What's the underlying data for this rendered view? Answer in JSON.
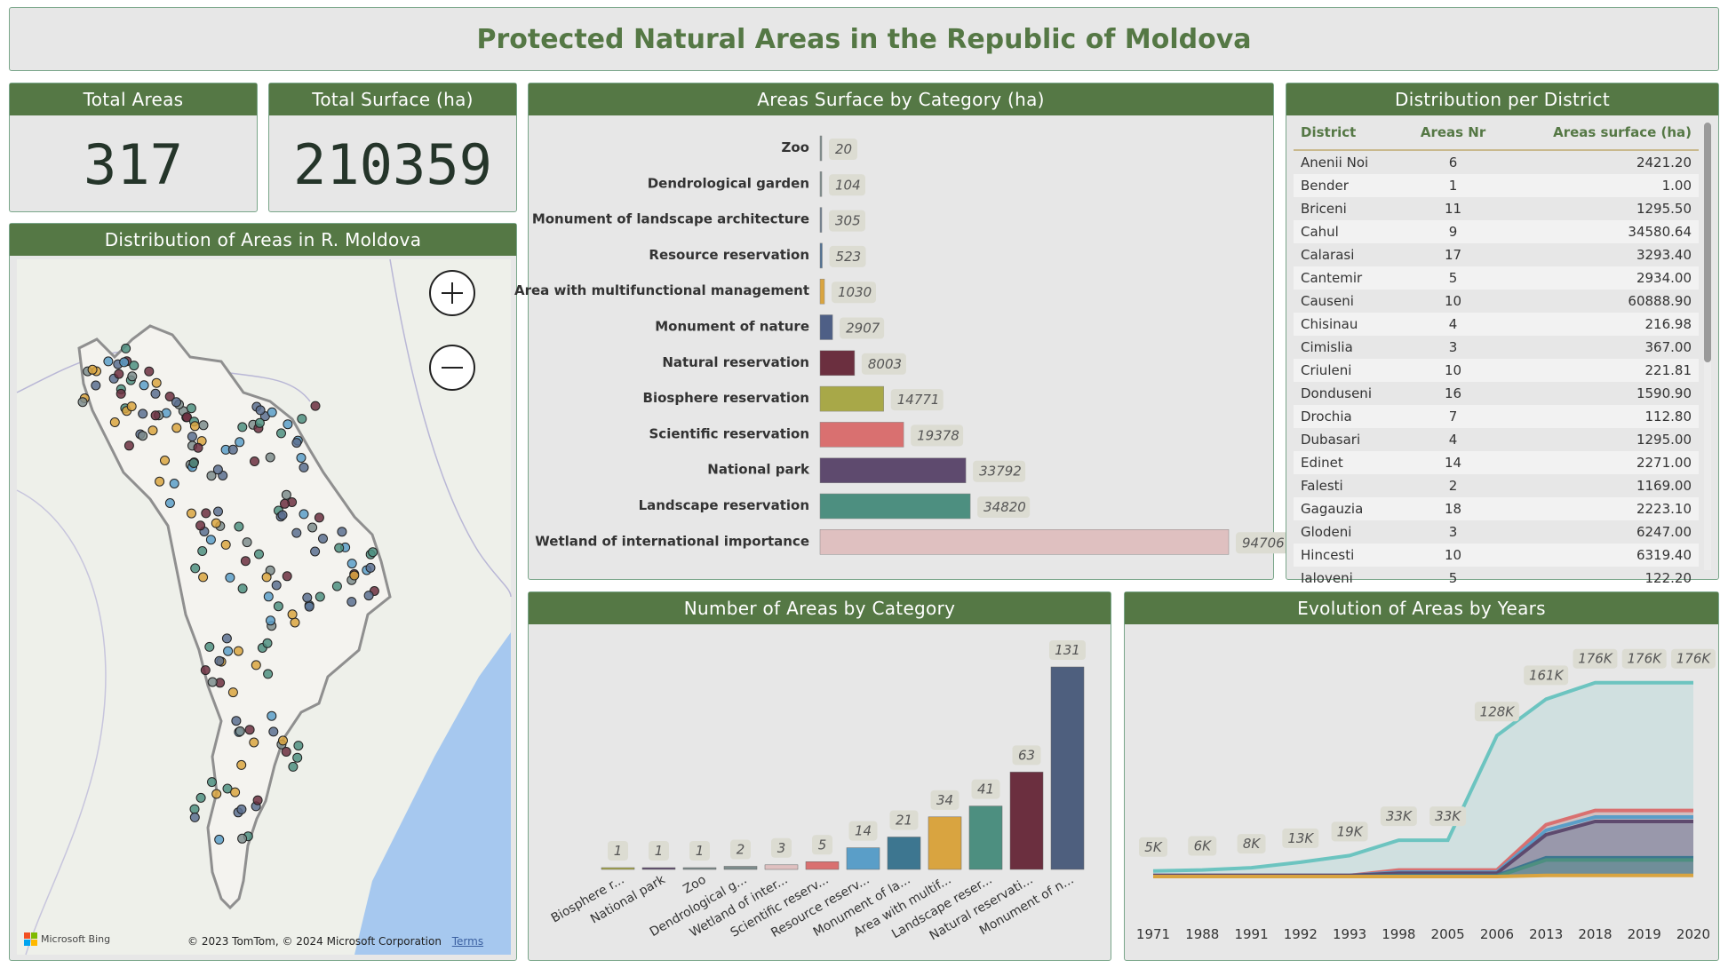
{
  "title": "Protected Natural Areas in the Republic of Moldova",
  "kpis": {
    "total_areas_label": "Total Areas",
    "total_areas_value": "317",
    "total_surface_label": "Total Surface (ha)",
    "total_surface_value": "210359"
  },
  "map": {
    "title": "Distribution of Areas in R. Moldova",
    "zoom_in": "+",
    "zoom_out": "−",
    "bing_label": "Microsoft Bing",
    "copyright": "© 2023 TomTom, © 2024 Microsoft Corporation",
    "terms": "Terms"
  },
  "table": {
    "title": "Distribution per District",
    "headers": [
      "District",
      "Areas Nr",
      "Areas surface (ha)"
    ],
    "rows": [
      [
        "Anenii Noi",
        "6",
        "2421.20"
      ],
      [
        "Bender",
        "1",
        "1.00"
      ],
      [
        "Briceni",
        "11",
        "1295.50"
      ],
      [
        "Cahul",
        "9",
        "34580.64"
      ],
      [
        "Calarasi",
        "17",
        "3293.40"
      ],
      [
        "Cantemir",
        "5",
        "2934.00"
      ],
      [
        "Causeni",
        "10",
        "60888.90"
      ],
      [
        "Chisinau",
        "4",
        "216.98"
      ],
      [
        "Cimislia",
        "3",
        "367.00"
      ],
      [
        "Criuleni",
        "10",
        "221.81"
      ],
      [
        "Donduseni",
        "16",
        "1590.90"
      ],
      [
        "Drochia",
        "7",
        "112.80"
      ],
      [
        "Dubasari",
        "4",
        "1295.00"
      ],
      [
        "Edinet",
        "14",
        "2271.00"
      ],
      [
        "Falesti",
        "2",
        "1169.00"
      ],
      [
        "Gagauzia",
        "18",
        "2223.10"
      ],
      [
        "Glodeni",
        "3",
        "6247.00"
      ],
      [
        "Hincesti",
        "10",
        "6319.40"
      ],
      [
        "Ialoveni",
        "5",
        "122.20"
      ]
    ]
  },
  "colors": {
    "header_green": "#557845",
    "panel_bg": "#e7e7e7",
    "title_green": "#557845"
  },
  "chart_data": [
    {
      "id": "surface",
      "type": "bar",
      "orientation": "horizontal",
      "title": "Areas Surface by Category (ha)",
      "categories": [
        "Zoo",
        "Dendrological garden",
        "Monument of landscape architecture",
        "Resource reservation",
        "Area with multifunctional management",
        "Monument of nature",
        "Natural reservation",
        "Biosphere reservation",
        "Scientific reservation",
        "National park",
        "Landscape reservation",
        "Wetland of international importance"
      ],
      "values": [
        20,
        104,
        305,
        523,
        1030,
        2907,
        8003,
        14771,
        19378,
        33792,
        34820,
        94706
      ],
      "colors": [
        "#7d8c8c",
        "#7d8c8c",
        "#6f7f8f",
        "#4f6f92",
        "#d9a440",
        "#4e5f86",
        "#6b2f3f",
        "#a8a848",
        "#d97070",
        "#5e4a6e",
        "#4d8f80",
        "#dfc0c0"
      ],
      "xlim": [
        0,
        94706
      ]
    },
    {
      "id": "count",
      "type": "bar",
      "title": "Number of Areas by Category",
      "categories": [
        "Biosphere r...",
        "National park",
        "Zoo",
        "Dendrological g...",
        "Wetland of inter...",
        "Scientific reserv...",
        "Resource reserv...",
        "Monument of la...",
        "Area with multif...",
        "Landscape reser...",
        "Natural reservati...",
        "Monument of n..."
      ],
      "values": [
        1,
        1,
        1,
        2,
        3,
        5,
        14,
        21,
        34,
        41,
        63,
        131
      ],
      "colors": [
        "#a8a848",
        "#5e4a6e",
        "#7d8c8c",
        "#7d8c8c",
        "#dfc0c0",
        "#d97070",
        "#5a9ec8",
        "#3d7690",
        "#d9a440",
        "#4d8f80",
        "#6b2f3f",
        "#4e5f7e"
      ],
      "ylim": [
        0,
        131
      ]
    },
    {
      "id": "evolution",
      "type": "area",
      "title": "Evolution of Areas by Years",
      "x": [
        "1971",
        "1988",
        "1991",
        "1992",
        "1993",
        "1998",
        "2005",
        "2006",
        "2013",
        "2018",
        "2019",
        "2020"
      ],
      "total_labels": [
        "5K",
        "6K",
        "8K",
        "13K",
        "19K",
        "33K",
        "33K",
        "128K",
        "161K",
        "176K",
        "176K",
        "176K"
      ],
      "series": [
        {
          "color": "#6cc4c0",
          "values": [
            5,
            6,
            8,
            13,
            19,
            33,
            33,
            128,
            161,
            176,
            176,
            176
          ]
        },
        {
          "color": "#d97070",
          "values": [
            1,
            1,
            1,
            1,
            1,
            6,
            6,
            6,
            47,
            60,
            60,
            60
          ]
        },
        {
          "color": "#5a9ec8",
          "values": [
            1,
            1,
            1,
            1,
            1,
            4,
            4,
            4,
            42,
            54,
            54,
            54
          ]
        },
        {
          "color": "#5e4a6e",
          "values": [
            1,
            1,
            1,
            1,
            1,
            3,
            3,
            3,
            38,
            50,
            50,
            50
          ]
        },
        {
          "color": "#3d7690",
          "values": [
            0,
            0,
            0,
            0,
            0,
            1,
            1,
            1,
            17,
            17,
            17,
            17
          ]
        },
        {
          "color": "#4d8f80",
          "values": [
            0,
            0,
            0,
            0,
            0,
            0,
            0,
            0,
            15,
            15,
            15,
            15
          ]
        },
        {
          "color": "#d9a440",
          "values": [
            0,
            0,
            0,
            0,
            0,
            0,
            0,
            0,
            1,
            1,
            1,
            1
          ]
        }
      ],
      "ylim": [
        0,
        200
      ]
    }
  ]
}
